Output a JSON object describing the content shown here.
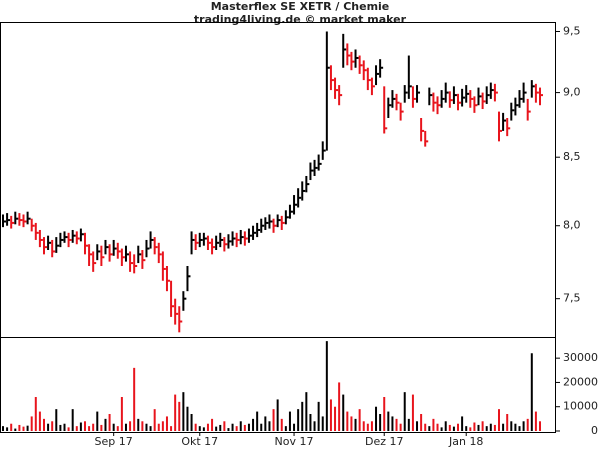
{
  "chart_data": {
    "type": "hlc",
    "title": "Masterflex SE XETR / Chemie",
    "subtitle": "trading4living.de © market maker",
    "categories": [
      null,
      null,
      null,
      null,
      null,
      null,
      null,
      null,
      null,
      null,
      null,
      null,
      null,
      null,
      null,
      null,
      null,
      null,
      null,
      null,
      null,
      null,
      null,
      null,
      null,
      null,
      null,
      "Sep 17",
      null,
      null,
      null,
      null,
      null,
      null,
      null,
      null,
      null,
      null,
      null,
      null,
      null,
      null,
      null,
      null,
      null,
      null,
      null,
      null,
      "Okt 17",
      null,
      null,
      null,
      null,
      null,
      null,
      null,
      null,
      null,
      null,
      null,
      null,
      null,
      null,
      null,
      null,
      null,
      null,
      null,
      null,
      null,
      null,
      "Nov 17",
      null,
      null,
      null,
      null,
      null,
      null,
      null,
      null,
      null,
      null,
      null,
      null,
      null,
      null,
      null,
      null,
      null,
      null,
      null,
      null,
      null,
      "Dez 17",
      null,
      null,
      null,
      null,
      null,
      null,
      null,
      null,
      null,
      null,
      null,
      null,
      null,
      null,
      null,
      null,
      null,
      null,
      null,
      "Jan 18",
      null,
      null,
      null,
      null,
      null,
      null,
      null,
      null,
      null,
      null,
      null,
      null,
      null,
      null,
      null,
      null,
      null,
      null
    ],
    "high": [
      8.08,
      8.09,
      8.07,
      8.1,
      8.09,
      8.08,
      8.1,
      8.05,
      8.02,
      7.97,
      7.92,
      7.93,
      7.9,
      7.92,
      7.95,
      7.96,
      7.95,
      7.97,
      7.96,
      7.98,
      7.95,
      7.87,
      7.82,
      7.87,
      7.86,
      7.9,
      7.87,
      7.9,
      7.88,
      7.84,
      7.86,
      7.82,
      7.8,
      7.86,
      7.83,
      7.9,
      7.96,
      7.92,
      7.88,
      7.82,
      7.72,
      7.62,
      7.5,
      7.45,
      7.55,
      7.72,
      7.96,
      7.94,
      7.95,
      7.95,
      7.93,
      7.91,
      7.93,
      7.95,
      7.92,
      7.94,
      7.96,
      7.95,
      7.97,
      7.96,
      7.98,
      8.0,
      8.02,
      8.05,
      8.06,
      8.08,
      8.05,
      8.08,
      8.07,
      8.11,
      8.15,
      8.22,
      8.27,
      8.32,
      8.36,
      8.46,
      8.48,
      8.52,
      8.62,
      9.5,
      9.22,
      9.12,
      9.06,
      9.48,
      9.4,
      9.33,
      9.35,
      9.3,
      9.26,
      9.2,
      9.12,
      9.22,
      9.27,
      9.05,
      8.96,
      9.02,
      8.99,
      8.92,
      9.06,
      9.3,
      9.05,
      9.06,
      8.8,
      8.7,
      9.04,
      9.0,
      8.97,
      9.02,
      9.08,
      9.01,
      9.05,
      8.99,
      9.03,
      9.06,
      9.02,
      8.97,
      9.04,
      9.0,
      9.05,
      9.08,
      9.07,
      8.85,
      8.84,
      8.8,
      8.92,
      8.96,
      9.02,
      9.08,
      8.95,
      9.1,
      9.07,
      9.04
    ],
    "low": [
      7.99,
      8.0,
      7.98,
      8.01,
      8.0,
      7.99,
      8.01,
      7.96,
      7.9,
      7.85,
      7.8,
      7.83,
      7.78,
      7.81,
      7.85,
      7.88,
      7.85,
      7.88,
      7.87,
      7.89,
      7.8,
      7.72,
      7.68,
      7.76,
      7.72,
      7.8,
      7.75,
      7.79,
      7.77,
      7.72,
      7.75,
      7.68,
      7.67,
      7.74,
      7.7,
      7.78,
      7.84,
      7.8,
      7.74,
      7.62,
      7.55,
      7.38,
      7.33,
      7.28,
      7.42,
      7.55,
      7.8,
      7.83,
      7.85,
      7.86,
      7.83,
      7.8,
      7.83,
      7.85,
      7.82,
      7.84,
      7.86,
      7.85,
      7.87,
      7.86,
      7.88,
      7.9,
      7.92,
      7.95,
      7.97,
      7.98,
      7.95,
      7.99,
      7.97,
      8.01,
      8.05,
      8.08,
      8.13,
      8.18,
      8.24,
      8.33,
      8.36,
      8.4,
      8.48,
      8.55,
      9.02,
      8.95,
      8.9,
      9.2,
      9.22,
      9.18,
      9.2,
      9.15,
      9.1,
      9.02,
      8.98,
      9.06,
      9.12,
      8.68,
      8.8,
      8.88,
      8.86,
      8.78,
      8.92,
      8.95,
      8.88,
      8.92,
      8.62,
      8.58,
      8.9,
      8.85,
      8.83,
      8.88,
      8.92,
      8.88,
      8.91,
      8.86,
      8.89,
      8.92,
      8.88,
      8.84,
      8.9,
      8.87,
      8.91,
      8.95,
      8.93,
      8.62,
      8.7,
      8.66,
      8.78,
      8.82,
      8.88,
      8.92,
      8.78,
      8.96,
      8.92,
      8.9
    ],
    "close": [
      8.03,
      8.04,
      8.02,
      8.05,
      8.04,
      8.03,
      8.05,
      8.0,
      7.95,
      7.9,
      7.85,
      7.88,
      7.82,
      7.86,
      7.9,
      7.92,
      7.9,
      7.93,
      7.91,
      7.94,
      7.86,
      7.8,
      7.74,
      7.82,
      7.78,
      7.85,
      7.8,
      7.84,
      7.82,
      7.78,
      7.8,
      7.74,
      7.72,
      7.8,
      7.76,
      7.84,
      7.9,
      7.85,
      7.8,
      7.7,
      7.62,
      7.45,
      7.4,
      7.35,
      7.5,
      7.65,
      7.9,
      7.88,
      7.9,
      7.91,
      7.88,
      7.85,
      7.88,
      7.9,
      7.87,
      7.89,
      7.91,
      7.9,
      7.92,
      7.91,
      7.93,
      7.95,
      7.97,
      8.0,
      8.02,
      8.03,
      8.0,
      8.04,
      8.02,
      8.06,
      8.1,
      8.15,
      8.2,
      8.25,
      8.3,
      8.4,
      8.42,
      8.45,
      8.55,
      9.2,
      9.1,
      9.02,
      8.98,
      9.35,
      9.3,
      9.25,
      9.28,
      9.22,
      9.18,
      9.1,
      9.05,
      9.15,
      9.2,
      8.72,
      8.9,
      8.95,
      8.92,
      8.85,
      9.0,
      9.05,
      8.95,
      9.0,
      8.7,
      8.62,
      8.98,
      8.92,
      8.9,
      8.95,
      9.0,
      8.94,
      8.98,
      8.92,
      8.96,
      8.99,
      8.95,
      8.9,
      8.97,
      8.93,
      8.98,
      9.02,
      9.0,
      8.7,
      8.78,
      8.72,
      8.86,
      8.9,
      8.95,
      9.0,
      8.85,
      9.05,
      9.0,
      8.98
    ],
    "volume": [
      2000,
      1500,
      3000,
      1000,
      2500,
      1800,
      2200,
      6000,
      14000,
      8000,
      5000,
      3000,
      4000,
      9000,
      2500,
      3000,
      1500,
      9000,
      2000,
      3500,
      4000,
      2000,
      3000,
      8000,
      2500,
      5000,
      7000,
      3000,
      2000,
      14000,
      3000,
      4000,
      26000,
      5000,
      4000,
      3000,
      2000,
      9000,
      3000,
      4000,
      6000,
      2000,
      15000,
      12000,
      16000,
      10000,
      7000,
      3000,
      2000,
      1500,
      3000,
      5000,
      1800,
      2500,
      4000,
      1200,
      3000,
      2000,
      4000,
      2500,
      3000,
      5000,
      8000,
      3000,
      6000,
      4000,
      9000,
      13000,
      5000,
      2000,
      8000,
      3000,
      9000,
      12000,
      16000,
      7000,
      4000,
      12000,
      6000,
      37000,
      13000,
      10000,
      20000,
      15000,
      8000,
      6000,
      5000,
      9000,
      4000,
      3000,
      4000,
      10000,
      7000,
      14000,
      8000,
      6000,
      5000,
      3000,
      16000,
      5000,
      15000,
      4000,
      7000,
      3000,
      2000,
      5000,
      3000,
      1500,
      4000,
      2500,
      1800,
      3000,
      6000,
      2000,
      1500,
      3500,
      2500,
      4000,
      2000,
      3000,
      2500,
      9000,
      3000,
      7000,
      4000,
      3000,
      2000,
      4000,
      5000,
      32000,
      8000,
      4000
    ],
    "log_scale": true,
    "ylim": [
      7.25,
      9.58
    ],
    "yticks": [
      {
        "value": 7.5,
        "label": "7,5"
      },
      {
        "value": 8.0,
        "label": "8,0"
      },
      {
        "value": 8.5,
        "label": "8,5"
      },
      {
        "value": 9.0,
        "label": "9,0"
      },
      {
        "value": 9.5,
        "label": "9,5"
      }
    ],
    "y2lim": [
      0,
      38300
    ],
    "y2ticks": [
      0,
      10000,
      20000,
      30000
    ],
    "up_color": "#000000",
    "down_color": "#e8141c"
  }
}
